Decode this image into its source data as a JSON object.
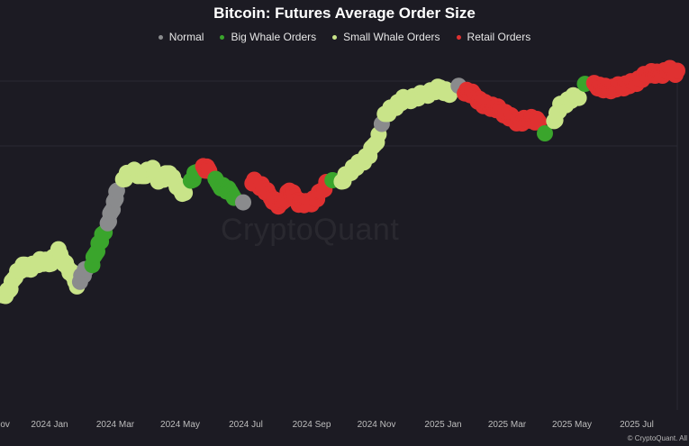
{
  "colors": {
    "background": "#1c1b23",
    "normal": "#8a8b8d",
    "big_whale": "#3aa52c",
    "small_whale": "#c9e489",
    "retail": "#e03131"
  },
  "watermark": "CryptoQuant",
  "copyright": "© CryptoQuant. All",
  "chart_data": {
    "type": "scatter",
    "title": "Bitcoin: Futures Average Order Size",
    "legend_position": "top-center",
    "xlabel": "",
    "ylabel": "",
    "x_ticks": [
      "Nov",
      "2024 Jan",
      "2024 Mar",
      "2024 May",
      "2024 Jul",
      "2024 Sep",
      "2024 Nov",
      "2025 Jan",
      "2025 Mar",
      "2025 May",
      "2025 Jul"
    ],
    "xlim": [
      0,
      22
    ],
    "ylim": [
      0,
      100
    ],
    "series": [
      {
        "name": "Normal",
        "color_key": "normal"
      },
      {
        "name": "Big Whale Orders",
        "color_key": "big_whale"
      },
      {
        "name": "Small Whale Orders",
        "color_key": "small_whale"
      },
      {
        "name": "Retail Orders",
        "color_key": "retail"
      }
    ],
    "segments": [
      {
        "series": "Small Whale Orders",
        "points": [
          [
            0.0,
            12
          ],
          [
            0.3,
            15
          ],
          [
            0.5,
            22
          ],
          [
            0.8,
            26
          ],
          [
            1.0,
            25
          ],
          [
            1.3,
            28
          ],
          [
            1.6,
            27
          ],
          [
            1.9,
            32
          ],
          [
            2.2,
            25
          ],
          [
            2.5,
            18
          ]
        ]
      },
      {
        "series": "Normal",
        "points": [
          [
            2.6,
            20
          ],
          [
            2.8,
            24
          ]
        ]
      },
      {
        "series": "Big Whale Orders",
        "points": [
          [
            3.0,
            27
          ],
          [
            3.2,
            35
          ],
          [
            3.4,
            41
          ]
        ]
      },
      {
        "series": "Normal",
        "points": [
          [
            3.5,
            45
          ],
          [
            3.7,
            53
          ],
          [
            3.8,
            59
          ]
        ]
      },
      {
        "series": "Small Whale Orders",
        "points": [
          [
            4.0,
            64
          ],
          [
            4.3,
            68
          ],
          [
            4.6,
            65
          ],
          [
            4.9,
            69
          ],
          [
            5.2,
            63
          ],
          [
            5.5,
            67
          ],
          [
            5.8,
            60
          ],
          [
            6.0,
            58
          ]
        ]
      },
      {
        "series": "Big Whale Orders",
        "points": [
          [
            6.2,
            63
          ],
          [
            6.4,
            68
          ]
        ]
      },
      {
        "series": "Retail Orders",
        "points": [
          [
            6.6,
            69
          ],
          [
            6.8,
            68
          ]
        ]
      },
      {
        "series": "Big Whale Orders",
        "points": [
          [
            7.0,
            63
          ],
          [
            7.3,
            60
          ],
          [
            7.6,
            57
          ]
        ]
      },
      {
        "series": "Normal",
        "points": [
          [
            7.9,
            55
          ]
        ]
      },
      {
        "series": "Retail Orders",
        "points": [
          [
            8.2,
            63
          ],
          [
            8.5,
            61
          ],
          [
            8.8,
            56
          ],
          [
            9.1,
            52
          ],
          [
            9.4,
            59
          ],
          [
            9.7,
            54
          ],
          [
            10.0,
            53
          ],
          [
            10.3,
            56
          ],
          [
            10.6,
            62
          ]
        ]
      },
      {
        "series": "Big Whale Orders",
        "points": [
          [
            10.8,
            64
          ]
        ]
      },
      {
        "series": "Small Whale Orders",
        "points": [
          [
            11.1,
            63
          ],
          [
            11.4,
            68
          ],
          [
            11.7,
            71
          ],
          [
            12.0,
            75
          ],
          [
            12.3,
            83
          ]
        ]
      },
      {
        "series": "Normal",
        "points": [
          [
            12.4,
            88
          ]
        ]
      },
      {
        "series": "Small Whale Orders",
        "points": [
          [
            12.5,
            92
          ],
          [
            12.8,
            96
          ],
          [
            13.1,
            99
          ],
          [
            13.5,
            100
          ],
          [
            13.9,
            102
          ],
          [
            14.3,
            104
          ],
          [
            14.6,
            102
          ]
        ]
      },
      {
        "series": "Normal",
        "points": [
          [
            14.9,
            104
          ]
        ]
      },
      {
        "series": "Retail Orders",
        "points": [
          [
            15.1,
            103
          ],
          [
            15.4,
            101
          ],
          [
            15.7,
            97
          ],
          [
            16.0,
            96
          ],
          [
            16.3,
            94
          ],
          [
            16.6,
            91
          ],
          [
            16.9,
            89
          ],
          [
            17.2,
            91
          ],
          [
            17.5,
            89
          ]
        ]
      },
      {
        "series": "Big Whale Orders",
        "points": [
          [
            17.7,
            85
          ]
        ]
      },
      {
        "series": "Small Whale Orders",
        "points": [
          [
            18.0,
            90
          ],
          [
            18.2,
            96
          ],
          [
            18.5,
            99
          ],
          [
            18.8,
            101
          ]
        ]
      },
      {
        "series": "Big Whale Orders",
        "points": [
          [
            19.0,
            106
          ]
        ]
      },
      {
        "series": "Retail Orders",
        "points": [
          [
            19.3,
            106
          ],
          [
            19.6,
            104
          ],
          [
            19.9,
            104
          ],
          [
            20.2,
            105
          ],
          [
            20.5,
            106
          ],
          [
            20.8,
            108
          ],
          [
            21.1,
            111
          ],
          [
            21.4,
            110
          ],
          [
            21.7,
            112
          ],
          [
            22.0,
            111
          ]
        ]
      }
    ]
  }
}
